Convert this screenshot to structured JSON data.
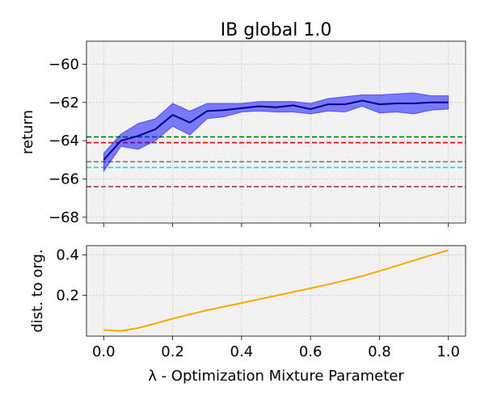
{
  "chart_data": [
    {
      "type": "line",
      "title": "IB global 1.0",
      "xlabel": "",
      "ylabel": "return",
      "xlim": [
        -0.05,
        1.05
      ],
      "ylim": [
        -68.3,
        -58.8
      ],
      "xticks": [
        0.0,
        0.2,
        0.4,
        0.6,
        0.8,
        1.0
      ],
      "xtick_labels": [],
      "yticks": [
        -68,
        -66,
        -64,
        -62,
        -60
      ],
      "ytick_labels": [
        "−68",
        "−66",
        "−64",
        "−62",
        "−60"
      ],
      "grid": true,
      "x": [
        0.0,
        0.05,
        0.1,
        0.15,
        0.2,
        0.25,
        0.3,
        0.35,
        0.4,
        0.45,
        0.5,
        0.55,
        0.6,
        0.65,
        0.7,
        0.75,
        0.8,
        0.85,
        0.9,
        0.95,
        1.0
      ],
      "series": [
        {
          "color": "#0000ff",
          "values": [
            -65.0,
            -64.0,
            -63.75,
            -63.4,
            -62.65,
            -63.05,
            -62.45,
            -62.4,
            -62.3,
            -62.2,
            -62.25,
            -62.15,
            -62.35,
            -62.1,
            -62.1,
            -61.9,
            -62.1,
            -62.05,
            -62.05,
            -62.0,
            -62.0
          ],
          "upper": [
            -64.65,
            -63.65,
            -63.1,
            -62.85,
            -62.05,
            -62.45,
            -62.05,
            -62.05,
            -62.05,
            -61.95,
            -61.95,
            -61.95,
            -62.05,
            -61.8,
            -61.7,
            -61.6,
            -61.6,
            -61.55,
            -61.5,
            -61.65,
            -61.65
          ],
          "lower": [
            -65.6,
            -64.3,
            -64.45,
            -64.0,
            -63.25,
            -63.7,
            -62.85,
            -62.75,
            -62.5,
            -62.45,
            -62.5,
            -62.5,
            -62.6,
            -62.45,
            -62.5,
            -62.2,
            -62.55,
            -62.5,
            -62.6,
            -62.4,
            -62.35
          ]
        }
      ],
      "reference_lines": [
        {
          "y": -63.8,
          "color": "#008000"
        },
        {
          "y": -64.1,
          "color": "#dd0000"
        },
        {
          "y": -65.1,
          "color": "#808080"
        },
        {
          "y": -65.4,
          "color": "#00e5ee"
        },
        {
          "y": -66.4,
          "color": "#a52a2a"
        }
      ]
    },
    {
      "type": "line",
      "title": "",
      "xlabel": "λ - Optimization Mixture Parameter",
      "ylabel": "dist. to org.",
      "xlim": [
        -0.05,
        1.05
      ],
      "ylim": [
        0.0,
        0.445
      ],
      "xticks": [
        0.0,
        0.2,
        0.4,
        0.6,
        0.8,
        1.0
      ],
      "xtick_labels": [
        "0.0",
        "0.2",
        "0.4",
        "0.6",
        "0.8",
        "1.0"
      ],
      "yticks": [
        0.2,
        0.4
      ],
      "ytick_labels": [
        "0.2",
        "0.4"
      ],
      "grid": true,
      "x": [
        0.0,
        0.05,
        0.1,
        0.15,
        0.2,
        0.25,
        0.3,
        0.35,
        0.4,
        0.45,
        0.5,
        0.55,
        0.6,
        0.65,
        0.7,
        0.75,
        0.8,
        0.85,
        0.9,
        0.95,
        1.0
      ],
      "series": [
        {
          "color": "#ffa500",
          "values": [
            0.03,
            0.026,
            0.04,
            0.062,
            0.086,
            0.107,
            0.127,
            0.145,
            0.163,
            0.181,
            0.199,
            0.217,
            0.235,
            0.254,
            0.274,
            0.295,
            0.32,
            0.346,
            0.372,
            0.398,
            0.422
          ]
        }
      ]
    }
  ]
}
